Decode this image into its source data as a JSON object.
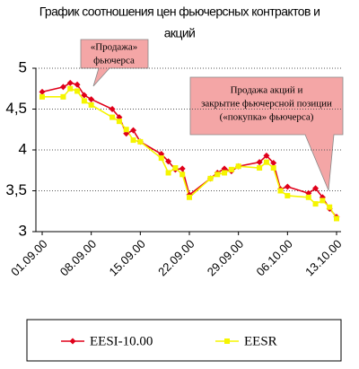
{
  "chart_data": {
    "type": "line",
    "title": [
      "График соотношения цен фьючерсных контрактов и",
      "акций"
    ],
    "x": [
      "01.09.00",
      "04.09.00",
      "05.09.00",
      "06.09.00",
      "07.09.00",
      "08.09.00",
      "11.09.00",
      "12.09.00",
      "13.09.00",
      "14.09.00",
      "15.09.00",
      "18.09.00",
      "19.09.00",
      "20.09.00",
      "21.09.00",
      "22.09.00",
      "25.09.00",
      "26.09.00",
      "27.09.00",
      "28.09.00",
      "29.09.00",
      "02.10.00",
      "03.10.00",
      "04.10.00",
      "05.10.00",
      "06.10.00",
      "09.10.00",
      "10.10.00",
      "11.10.00",
      "12.10.00",
      "13.10.00"
    ],
    "xlim": [
      "01.09.00",
      "13.10.00"
    ],
    "xticks": [
      "01.09.00",
      "08.09.00",
      "15.09.00",
      "22.09.00",
      "29.09.00",
      "06.10.00",
      "13.10.00"
    ],
    "ylim": [
      3,
      5
    ],
    "yticks": [
      3,
      {
        "value": 3.5,
        "label": "3,5"
      },
      4,
      {
        "value": 4.5,
        "label": "4,5"
      },
      5
    ],
    "grid": true,
    "series": [
      {
        "name": "EESI-10.00",
        "color": "#e0001a",
        "marker": "diamond",
        "values": [
          4.71,
          4.77,
          4.82,
          4.8,
          4.67,
          4.62,
          4.5,
          4.4,
          4.2,
          4.24,
          4.1,
          3.95,
          3.86,
          3.76,
          3.77,
          3.45,
          3.65,
          3.72,
          3.77,
          3.74,
          3.8,
          3.85,
          3.93,
          3.84,
          3.52,
          3.55,
          3.47,
          3.53,
          3.42,
          3.28,
          3.18
        ]
      },
      {
        "name": "EESR",
        "color": "#f5f500",
        "marker": "square",
        "values": [
          4.65,
          4.65,
          4.75,
          4.72,
          4.6,
          4.55,
          4.4,
          4.35,
          4.25,
          4.12,
          4.1,
          3.9,
          3.72,
          3.78,
          3.7,
          3.42,
          3.65,
          3.7,
          3.72,
          3.76,
          3.8,
          3.78,
          3.85,
          3.78,
          3.5,
          3.44,
          3.42,
          3.34,
          3.38,
          3.3,
          3.16
        ]
      }
    ],
    "annotations": [
      {
        "lines": [
          "«Продажа»",
          "фьючерса"
        ]
      },
      {
        "lines": [
          "Продажа акций и",
          "закрытие фьючерсной позиции",
          "(«покупка»  фьючерса)"
        ]
      }
    ]
  }
}
